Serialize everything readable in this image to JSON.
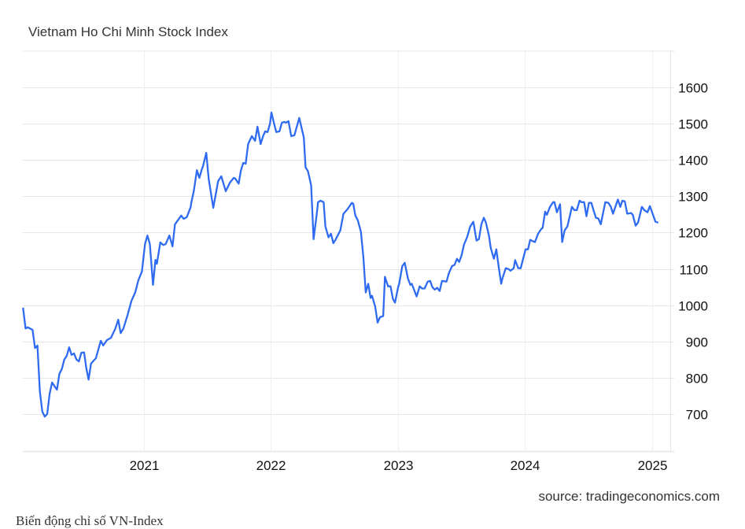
{
  "chart_data": {
    "type": "line",
    "title": "Vietnam Ho Chi Minh Stock Index",
    "source": "source: tradingeconomics.com",
    "caption": "Biến động chỉ số VN-Index",
    "xlabel": "",
    "ylabel": "",
    "xlim": [
      "2020-01-20",
      "2025-02-17"
    ],
    "ylim": [
      598,
      1700
    ],
    "x_ticks": [
      "2021",
      "2022",
      "2023",
      "2024",
      "2025"
    ],
    "y_ticks": [
      700,
      800,
      900,
      1000,
      1100,
      1200,
      1300,
      1400,
      1500,
      1600
    ],
    "y_axis_position": "right",
    "grid": true,
    "line_color": "#2f6bf0",
    "series": [
      {
        "points": [
          [
            "2020-01-21",
            991
          ],
          [
            "2020-01-28",
            936
          ],
          [
            "2020-02-03",
            939
          ],
          [
            "2020-02-17",
            932
          ],
          [
            "2020-02-24",
            882
          ],
          [
            "2020-03-02",
            889
          ],
          [
            "2020-03-09",
            761
          ],
          [
            "2020-03-16",
            707
          ],
          [
            "2020-03-23",
            693
          ],
          [
            "2020-03-30",
            700
          ],
          [
            "2020-04-06",
            756
          ],
          [
            "2020-04-13",
            787
          ],
          [
            "2020-04-27",
            767
          ],
          [
            "2020-05-04",
            811
          ],
          [
            "2020-05-11",
            824
          ],
          [
            "2020-05-18",
            850
          ],
          [
            "2020-05-25",
            860
          ],
          [
            "2020-06-01",
            884
          ],
          [
            "2020-06-08",
            863
          ],
          [
            "2020-06-15",
            867
          ],
          [
            "2020-06-22",
            850
          ],
          [
            "2020-06-29",
            845
          ],
          [
            "2020-07-06",
            869
          ],
          [
            "2020-07-14",
            870
          ],
          [
            "2020-07-20",
            828
          ],
          [
            "2020-07-27",
            795
          ],
          [
            "2020-08-03",
            839
          ],
          [
            "2020-08-17",
            854
          ],
          [
            "2020-08-31",
            902
          ],
          [
            "2020-09-07",
            889
          ],
          [
            "2020-09-18",
            904
          ],
          [
            "2020-09-29",
            910
          ],
          [
            "2020-10-12",
            936
          ],
          [
            "2020-10-20",
            960
          ],
          [
            "2020-10-27",
            923
          ],
          [
            "2020-11-04",
            936
          ],
          [
            "2020-11-16",
            973
          ],
          [
            "2020-11-27",
            1012
          ],
          [
            "2020-12-08",
            1036
          ],
          [
            "2020-12-17",
            1069
          ],
          [
            "2020-12-27",
            1093
          ],
          [
            "2021-01-05",
            1168
          ],
          [
            "2021-01-12",
            1192
          ],
          [
            "2021-01-19",
            1168
          ],
          [
            "2021-01-28",
            1056
          ],
          [
            "2021-02-04",
            1125
          ],
          [
            "2021-02-08",
            1114
          ],
          [
            "2021-02-18",
            1173
          ],
          [
            "2021-02-26",
            1166
          ],
          [
            "2021-03-05",
            1168
          ],
          [
            "2021-03-16",
            1192
          ],
          [
            "2021-03-25",
            1162
          ],
          [
            "2021-04-01",
            1223
          ],
          [
            "2021-04-19",
            1247
          ],
          [
            "2021-04-26",
            1238
          ],
          [
            "2021-05-05",
            1243
          ],
          [
            "2021-05-16",
            1270
          ],
          [
            "2021-05-18",
            1283
          ],
          [
            "2021-05-25",
            1314
          ],
          [
            "2021-06-03",
            1372
          ],
          [
            "2021-06-10",
            1351
          ],
          [
            "2021-06-17",
            1374
          ],
          [
            "2021-06-21",
            1385
          ],
          [
            "2021-06-30",
            1420
          ],
          [
            "2021-07-07",
            1348
          ],
          [
            "2021-07-20",
            1268
          ],
          [
            "2021-08-03",
            1342
          ],
          [
            "2021-08-12",
            1355
          ],
          [
            "2021-08-25",
            1314
          ],
          [
            "2021-09-06",
            1338
          ],
          [
            "2021-09-17",
            1351
          ],
          [
            "2021-09-21",
            1349
          ],
          [
            "2021-10-01",
            1335
          ],
          [
            "2021-10-07",
            1370
          ],
          [
            "2021-10-14",
            1392
          ],
          [
            "2021-10-21",
            1390
          ],
          [
            "2021-10-28",
            1444
          ],
          [
            "2021-11-08",
            1466
          ],
          [
            "2021-11-17",
            1453
          ],
          [
            "2021-11-24",
            1492
          ],
          [
            "2021-12-03",
            1444
          ],
          [
            "2021-12-10",
            1466
          ],
          [
            "2021-12-16",
            1479
          ],
          [
            "2021-12-23",
            1477
          ],
          [
            "2021-12-30",
            1500
          ],
          [
            "2022-01-03",
            1531
          ],
          [
            "2022-01-10",
            1503
          ],
          [
            "2022-01-17",
            1477
          ],
          [
            "2022-01-26",
            1479
          ],
          [
            "2022-02-02",
            1503
          ],
          [
            "2022-02-09",
            1505
          ],
          [
            "2022-02-14",
            1503
          ],
          [
            "2022-02-21",
            1507
          ],
          [
            "2022-03-01",
            1466
          ],
          [
            "2022-03-10",
            1468
          ],
          [
            "2022-03-24",
            1516
          ],
          [
            "2022-04-06",
            1462
          ],
          [
            "2022-04-11",
            1380
          ],
          [
            "2022-04-18",
            1369
          ],
          [
            "2022-04-27",
            1330
          ],
          [
            "2022-05-04",
            1182
          ],
          [
            "2022-05-13",
            1249
          ],
          [
            "2022-05-17",
            1284
          ],
          [
            "2022-05-24",
            1288
          ],
          [
            "2022-06-02",
            1284
          ],
          [
            "2022-06-07",
            1217
          ],
          [
            "2022-06-16",
            1187
          ],
          [
            "2022-06-23",
            1197
          ],
          [
            "2022-06-30",
            1171
          ],
          [
            "2022-07-06",
            1180
          ],
          [
            "2022-07-20",
            1206
          ],
          [
            "2022-07-29",
            1252
          ],
          [
            "2022-08-10",
            1265
          ],
          [
            "2022-08-22",
            1282
          ],
          [
            "2022-08-26",
            1280
          ],
          [
            "2022-09-01",
            1247
          ],
          [
            "2022-09-08",
            1234
          ],
          [
            "2022-09-17",
            1202
          ],
          [
            "2022-09-24",
            1132
          ],
          [
            "2022-10-01",
            1035
          ],
          [
            "2022-10-08",
            1059
          ],
          [
            "2022-10-15",
            1020
          ],
          [
            "2022-10-19",
            1026
          ],
          [
            "2022-10-28",
            996
          ],
          [
            "2022-11-04",
            952
          ],
          [
            "2022-11-11",
            967
          ],
          [
            "2022-11-20",
            970
          ],
          [
            "2022-11-25",
            1078
          ],
          [
            "2022-12-04",
            1052
          ],
          [
            "2022-12-11",
            1052
          ],
          [
            "2022-12-18",
            1017
          ],
          [
            "2022-12-24",
            1007
          ],
          [
            "2023-01-02",
            1050
          ],
          [
            "2023-01-05",
            1059
          ],
          [
            "2023-01-14",
            1108
          ],
          [
            "2023-01-21",
            1117
          ],
          [
            "2023-01-30",
            1074
          ],
          [
            "2023-02-06",
            1056
          ],
          [
            "2023-02-10",
            1059
          ],
          [
            "2023-02-24",
            1024
          ],
          [
            "2023-03-05",
            1052
          ],
          [
            "2023-03-12",
            1046
          ],
          [
            "2023-03-19",
            1046
          ],
          [
            "2023-03-28",
            1065
          ],
          [
            "2023-04-04",
            1067
          ],
          [
            "2023-04-10",
            1050
          ],
          [
            "2023-04-17",
            1043
          ],
          [
            "2023-04-24",
            1048
          ],
          [
            "2023-05-01",
            1039
          ],
          [
            "2023-05-08",
            1067
          ],
          [
            "2023-05-21",
            1065
          ],
          [
            "2023-05-28",
            1089
          ],
          [
            "2023-06-06",
            1108
          ],
          [
            "2023-06-13",
            1111
          ],
          [
            "2023-06-20",
            1128
          ],
          [
            "2023-06-26",
            1119
          ],
          [
            "2023-07-03",
            1137
          ],
          [
            "2023-07-10",
            1167
          ],
          [
            "2023-07-19",
            1187
          ],
          [
            "2023-07-28",
            1217
          ],
          [
            "2023-08-06",
            1230
          ],
          [
            "2023-08-15",
            1178
          ],
          [
            "2023-08-22",
            1182
          ],
          [
            "2023-08-29",
            1223
          ],
          [
            "2023-09-05",
            1241
          ],
          [
            "2023-09-11",
            1228
          ],
          [
            "2023-09-20",
            1191
          ],
          [
            "2023-09-25",
            1158
          ],
          [
            "2023-10-04",
            1128
          ],
          [
            "2023-10-11",
            1154
          ],
          [
            "2023-10-18",
            1104
          ],
          [
            "2023-10-25",
            1059
          ],
          [
            "2023-10-29",
            1076
          ],
          [
            "2023-11-07",
            1102
          ],
          [
            "2023-11-14",
            1100
          ],
          [
            "2023-11-21",
            1095
          ],
          [
            "2023-11-30",
            1102
          ],
          [
            "2023-12-04",
            1124
          ],
          [
            "2023-12-13",
            1102
          ],
          [
            "2023-12-20",
            1102
          ],
          [
            "2024-01-03",
            1154
          ],
          [
            "2024-01-10",
            1154
          ],
          [
            "2024-01-16",
            1180
          ],
          [
            "2024-01-25",
            1176
          ],
          [
            "2024-01-30",
            1174
          ],
          [
            "2024-02-08",
            1197
          ],
          [
            "2024-02-17",
            1210
          ],
          [
            "2024-02-21",
            1213
          ],
          [
            "2024-02-28",
            1258
          ],
          [
            "2024-03-04",
            1249
          ],
          [
            "2024-03-13",
            1271
          ],
          [
            "2024-03-22",
            1284
          ],
          [
            "2024-03-26",
            1284
          ],
          [
            "2024-04-02",
            1256
          ],
          [
            "2024-04-11",
            1278
          ],
          [
            "2024-04-17",
            1174
          ],
          [
            "2024-04-24",
            1206
          ],
          [
            "2024-05-02",
            1217
          ],
          [
            "2024-05-15",
            1271
          ],
          [
            "2024-05-22",
            1262
          ],
          [
            "2024-05-29",
            1262
          ],
          [
            "2024-06-06",
            1288
          ],
          [
            "2024-06-11",
            1284
          ],
          [
            "2024-06-19",
            1284
          ],
          [
            "2024-06-26",
            1245
          ],
          [
            "2024-07-03",
            1282
          ],
          [
            "2024-07-10",
            1282
          ],
          [
            "2024-07-16",
            1262
          ],
          [
            "2024-07-23",
            1241
          ],
          [
            "2024-07-30",
            1239
          ],
          [
            "2024-08-06",
            1223
          ],
          [
            "2024-08-19",
            1284
          ],
          [
            "2024-08-28",
            1282
          ],
          [
            "2024-09-04",
            1271
          ],
          [
            "2024-09-10",
            1252
          ],
          [
            "2024-09-24",
            1291
          ],
          [
            "2024-10-01",
            1271
          ],
          [
            "2024-10-07",
            1288
          ],
          [
            "2024-10-14",
            1286
          ],
          [
            "2024-10-21",
            1252
          ],
          [
            "2024-11-01",
            1254
          ],
          [
            "2024-11-06",
            1249
          ],
          [
            "2024-11-14",
            1219
          ],
          [
            "2024-11-21",
            1228
          ],
          [
            "2024-12-02",
            1271
          ],
          [
            "2024-12-09",
            1262
          ],
          [
            "2024-12-18",
            1256
          ],
          [
            "2024-12-25",
            1273
          ],
          [
            "2025-01-03",
            1249
          ],
          [
            "2025-01-10",
            1230
          ],
          [
            "2025-01-16",
            1228
          ]
        ]
      }
    ]
  }
}
